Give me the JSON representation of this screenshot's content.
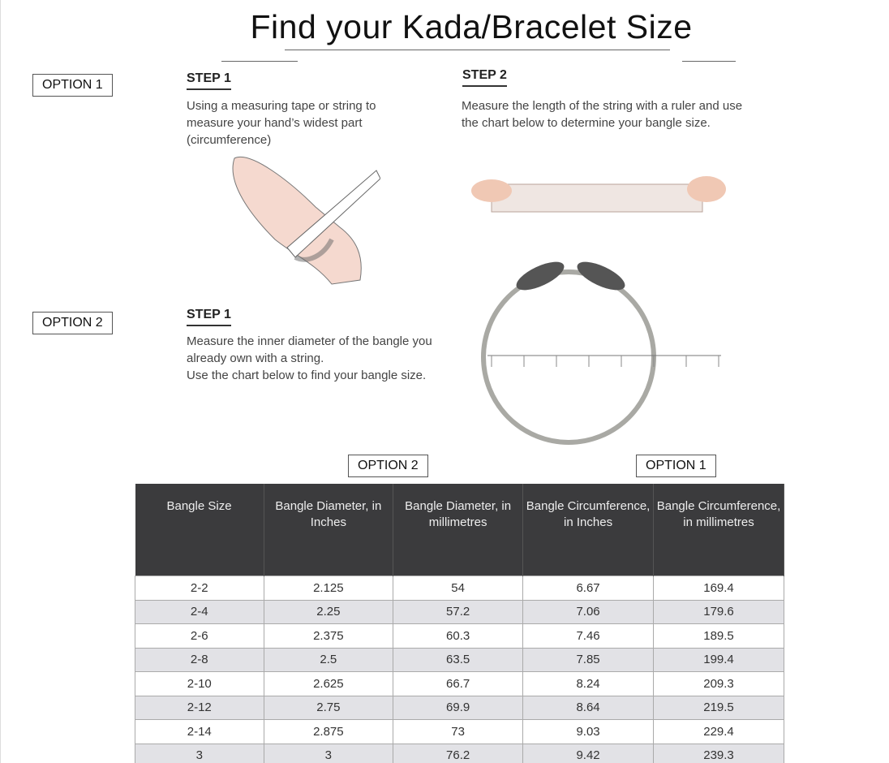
{
  "title": "Find your Kada/Bracelet Size",
  "option1": {
    "label": "OPTION 1",
    "step1": {
      "label": "STEP 1",
      "text": "Using a measuring tape or string to measure your hand’s widest part (circumference)"
    },
    "step2": {
      "label": "STEP 2",
      "text": "Measure the length of the string with a ruler and use the chart below to determine your bangle size."
    }
  },
  "option2": {
    "label": "OPTION 2",
    "step1": {
      "label": "STEP 1",
      "text1": "Measure the inner diameter of the bangle you already own with a string.",
      "text2": "Use the chart below to find your bangle size."
    }
  },
  "table_tags": {
    "option2": "OPTION 2",
    "option1": "OPTION 1"
  },
  "table": {
    "headers": [
      "Bangle Size",
      "Bangle Diameter, in Inches",
      "Bangle Diameter, in millimetres",
      "Bangle Circumference, in Inches",
      "Bangle Circumference, in millimetres"
    ],
    "rows": [
      [
        "2-2",
        "2.125",
        "54",
        "6.67",
        "169.4"
      ],
      [
        "2-4",
        "2.25",
        "57.2",
        "7.06",
        "179.6"
      ],
      [
        "2-6",
        "2.375",
        "60.3",
        "7.46",
        "189.5"
      ],
      [
        "2-8",
        "2.5",
        "63.5",
        "7.85",
        "199.4"
      ],
      [
        "2-10",
        "2.625",
        "66.7",
        "8.24",
        "209.3"
      ],
      [
        "2-12",
        "2.75",
        "69.9",
        "8.64",
        "219.5"
      ],
      [
        "2-14",
        "2.875",
        "73",
        "9.03",
        "229.4"
      ],
      [
        "3",
        "3",
        "76.2",
        "9.42",
        "239.3"
      ]
    ]
  }
}
